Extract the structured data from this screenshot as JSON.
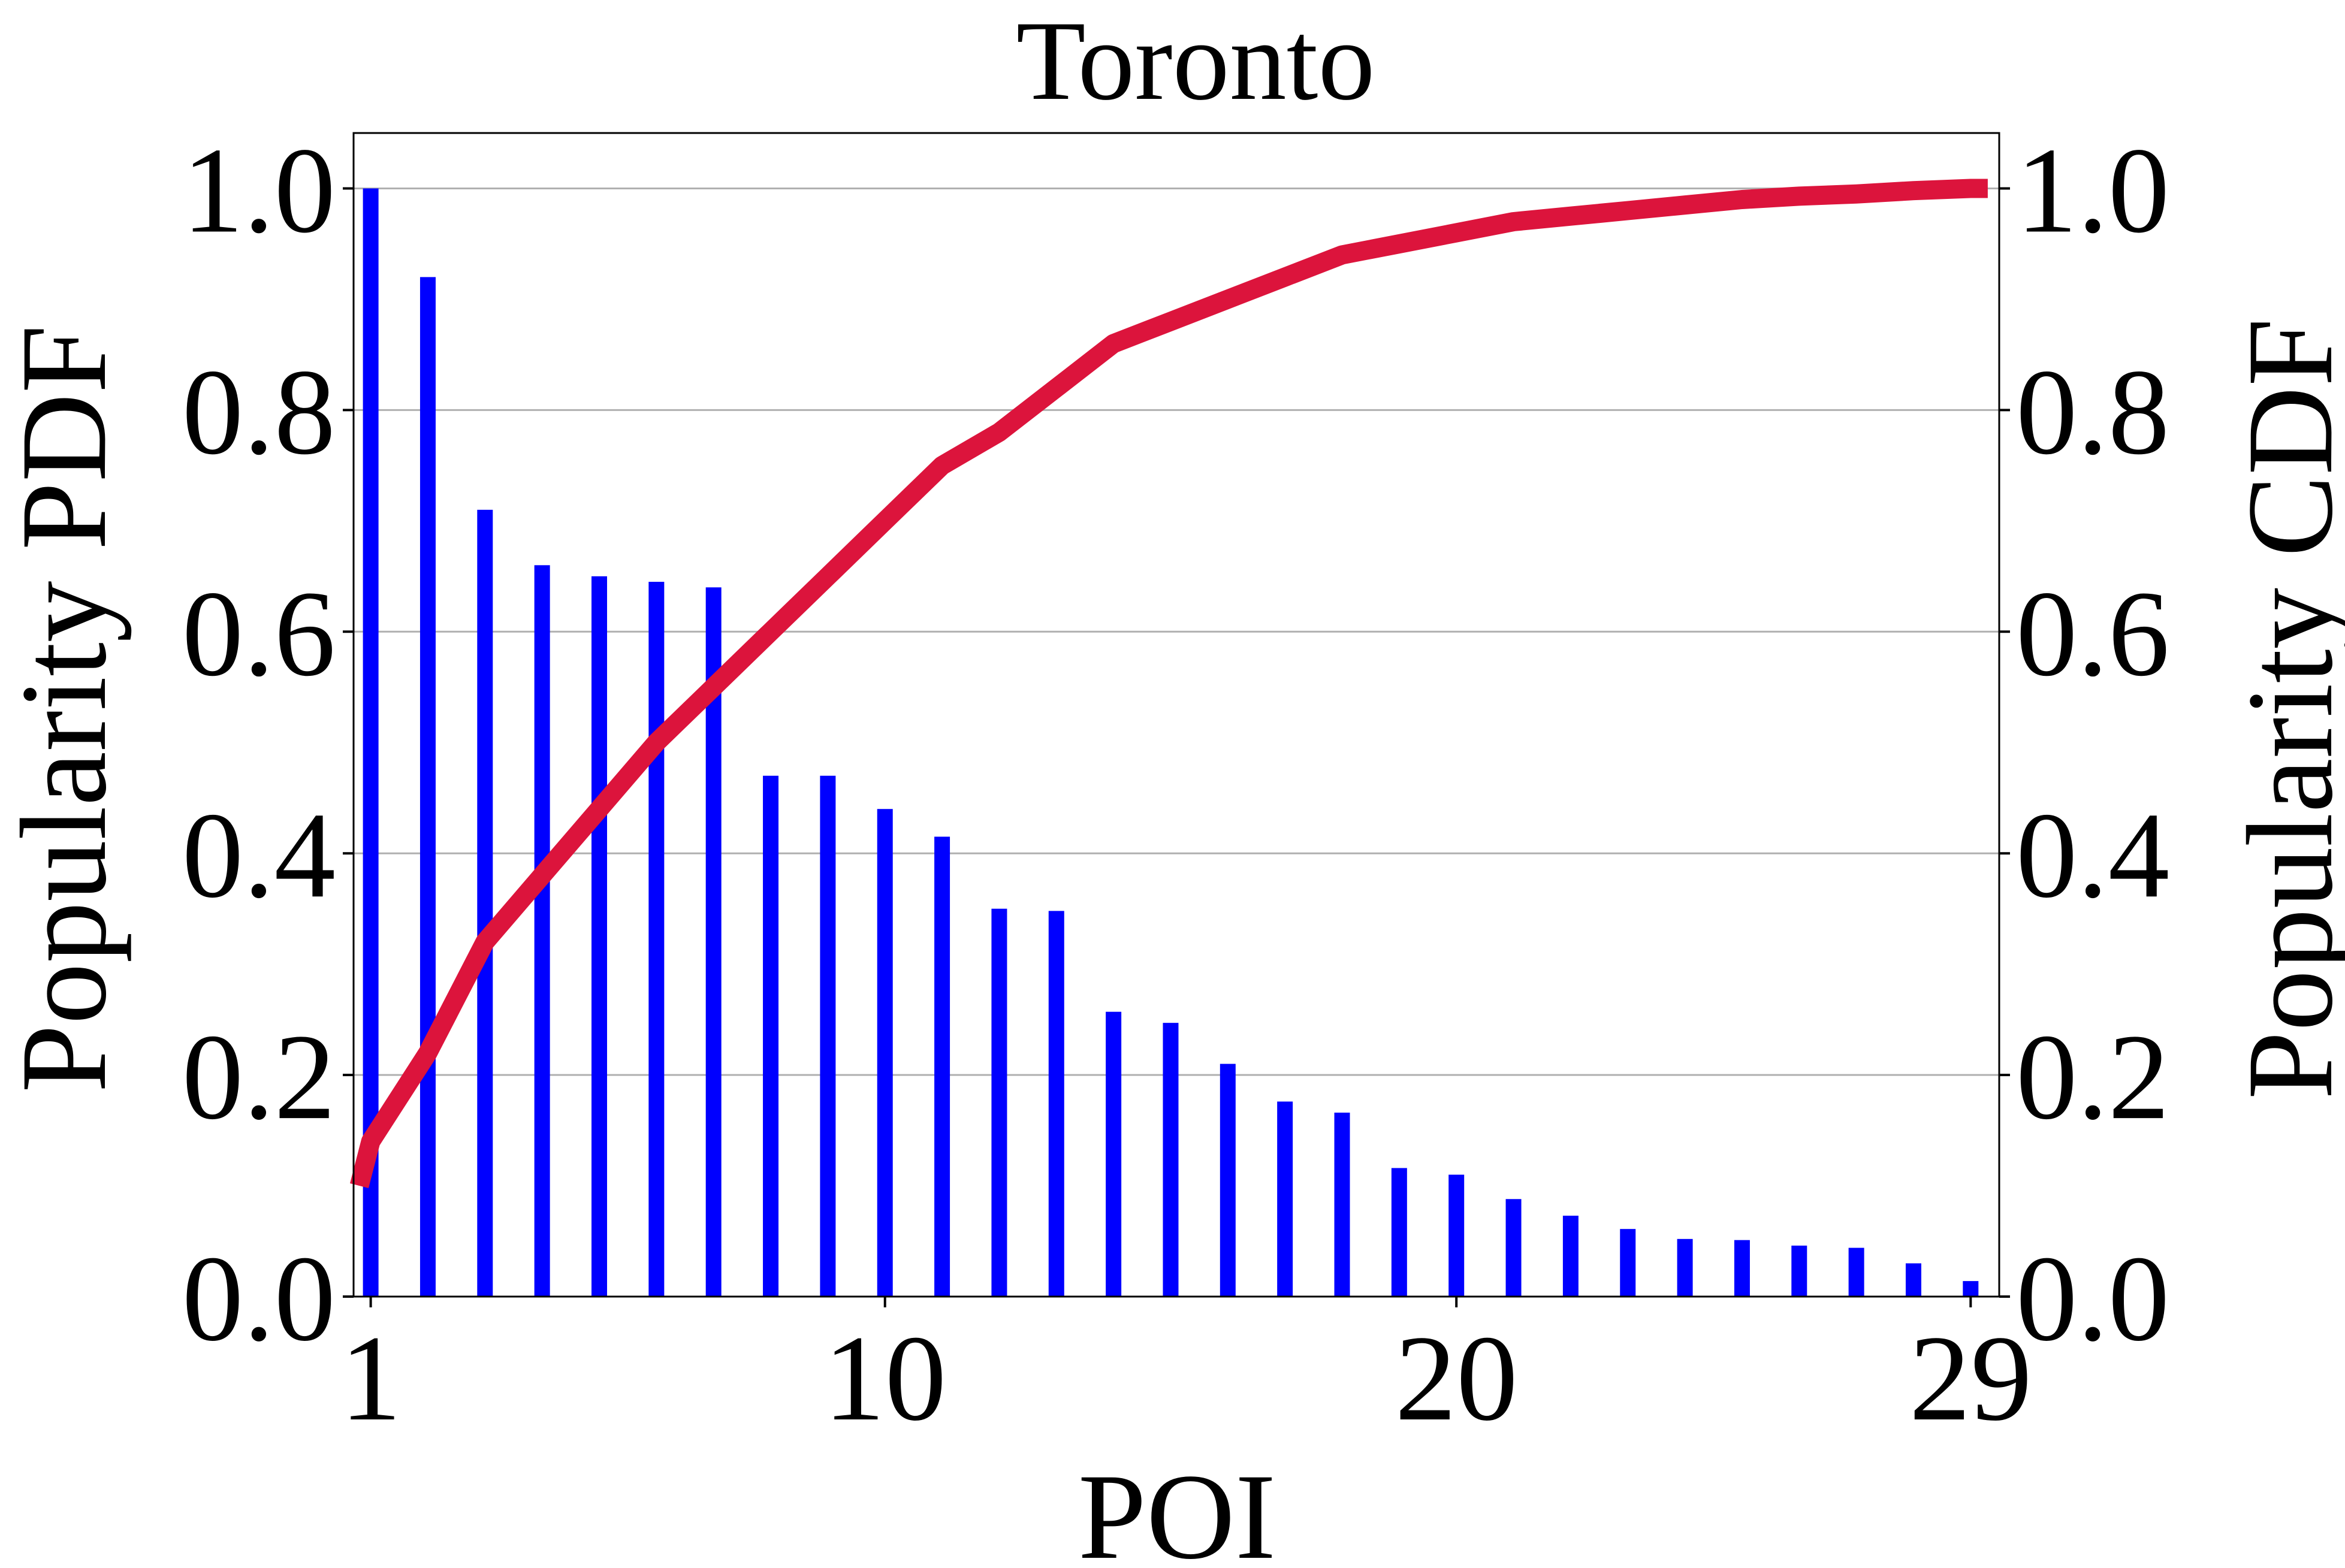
{
  "chart_data": {
    "type": "bar",
    "title": "Toronto",
    "xlabel": "POI",
    "ylabel_left": "Popularity PDF",
    "ylabel_right": "Popularity CDF",
    "xlim": [
      0.7,
      29.5
    ],
    "ylim_left": [
      0.0,
      1.05
    ],
    "ylim_right": [
      0.0,
      1.05
    ],
    "x_ticks": [
      1,
      10,
      20,
      29
    ],
    "x_tick_labels": [
      "1",
      "10",
      "20",
      "29"
    ],
    "y_ticks_left": [
      0.0,
      0.2,
      0.4,
      0.6,
      0.8,
      1.0
    ],
    "y_tick_labels_left": [
      "0.0",
      "0.2",
      "0.4",
      "0.6",
      "0.8",
      "1.0"
    ],
    "y_ticks_right": [
      0.0,
      0.2,
      0.4,
      0.6,
      0.8,
      1.0
    ],
    "y_tick_labels_right": [
      "0.0",
      "0.2",
      "0.4",
      "0.6",
      "0.8",
      "1.0"
    ],
    "grid": "horizontal",
    "series": [
      {
        "name": "Popularity PDF",
        "type": "bar",
        "axis": "left",
        "color": "#0000ff",
        "x": [
          1,
          2,
          3,
          4,
          5,
          6,
          7,
          8,
          9,
          10,
          11,
          12,
          13,
          14,
          15,
          16,
          17,
          18,
          19,
          20,
          21,
          22,
          23,
          24,
          25,
          26,
          27,
          28,
          29
        ],
        "values": [
          1.0,
          0.92,
          0.71,
          0.66,
          0.65,
          0.645,
          0.64,
          0.47,
          0.47,
          0.44,
          0.415,
          0.35,
          0.348,
          0.257,
          0.247,
          0.21,
          0.176,
          0.166,
          0.116,
          0.11,
          0.088,
          0.073,
          0.061,
          0.052,
          0.051,
          0.046,
          0.044,
          0.03,
          0.014
        ]
      },
      {
        "name": "Popularity CDF",
        "type": "line",
        "axis": "right",
        "color": "#dc143c",
        "x": [
          0.8,
          1,
          2,
          3,
          4,
          5,
          6,
          7,
          8,
          9,
          10,
          11,
          12,
          13,
          14,
          15,
          16,
          17,
          18,
          19,
          20,
          21,
          22,
          23,
          24,
          25,
          26,
          27,
          28,
          29,
          29.3
        ],
        "values": [
          0.1,
          0.14,
          0.22,
          0.32,
          0.38,
          0.44,
          0.5,
          0.55,
          0.6,
          0.65,
          0.7,
          0.75,
          0.78,
          0.82,
          0.86,
          0.88,
          0.9,
          0.92,
          0.94,
          0.95,
          0.96,
          0.97,
          0.975,
          0.98,
          0.985,
          0.99,
          0.993,
          0.995,
          0.998,
          1.0,
          1.0
        ]
      }
    ]
  }
}
